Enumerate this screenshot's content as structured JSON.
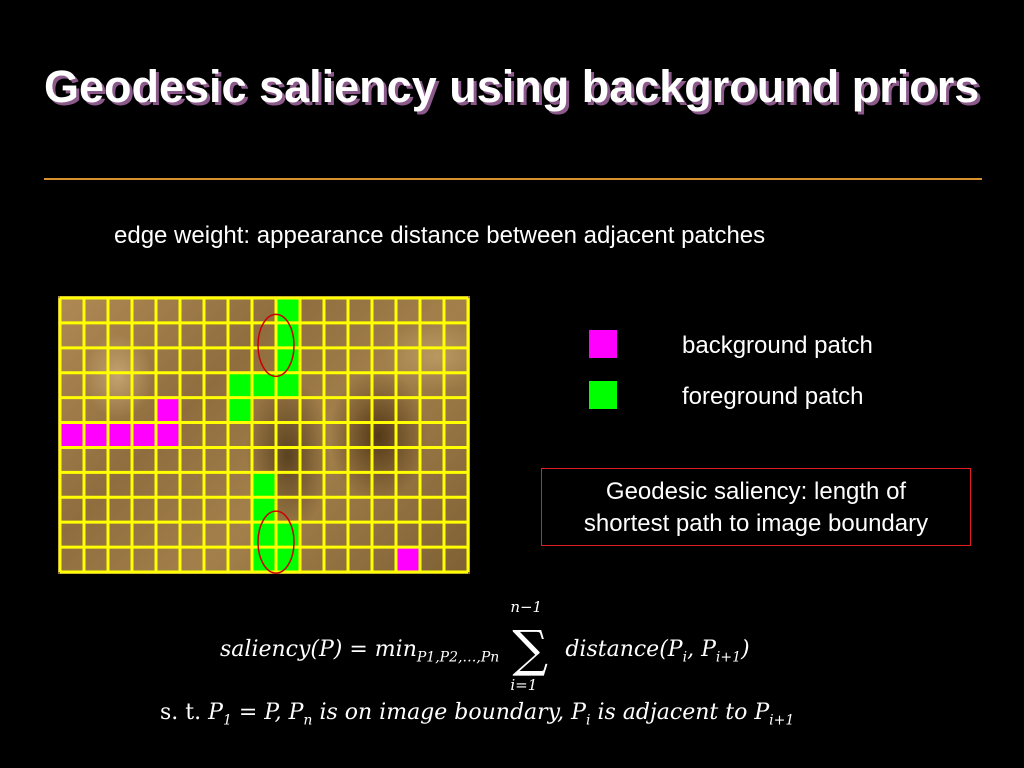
{
  "slide": {
    "title": "Geodesic saliency using background priors",
    "subtitle": "edge weight: appearance distance between adjacent patches"
  },
  "legend": {
    "background_label": "background patch",
    "foreground_label": "foreground patch",
    "background_color": "#ff00ff",
    "foreground_color": "#00ff00"
  },
  "definition": {
    "line1": "Geodesic saliency: length of",
    "line2": "shortest path to image boundary"
  },
  "patch_grid": {
    "rows": 11,
    "cols": 17,
    "grid_color": "#ffff00",
    "circle_color": "#cc0000",
    "background_cells": [
      [
        4,
        4
      ],
      [
        5,
        0
      ],
      [
        5,
        1
      ],
      [
        5,
        2
      ],
      [
        5,
        3
      ],
      [
        5,
        4
      ],
      [
        10,
        14
      ]
    ],
    "foreground_cells": [
      [
        0,
        9
      ],
      [
        1,
        9
      ],
      [
        2,
        9
      ],
      [
        3,
        7
      ],
      [
        3,
        8
      ],
      [
        3,
        9
      ],
      [
        4,
        7
      ],
      [
        7,
        8
      ],
      [
        8,
        8
      ],
      [
        9,
        8
      ],
      [
        9,
        9
      ],
      [
        10,
        8
      ],
      [
        10,
        9
      ]
    ]
  },
  "formula": {
    "lhs": "saliency(P) = min",
    "min_subscript": "P1,P2,…,Pn",
    "sum_upper": "n−1",
    "sum_lower": "i=1",
    "rhs_prefix": "distance(P",
    "rhs_sub_i": "i",
    "rhs_middle": ", P",
    "rhs_sub_i1": "i+1",
    "rhs_suffix": ")",
    "constraint_prefix": "s. t.",
    "constraint_p": "P",
    "constraint_sub1": "1",
    "constraint_eq": " = P, P",
    "constraint_subn": "n",
    "constraint_mid": " is on image boundary, P",
    "constraint_subi": "i",
    "constraint_adj": " is adjacent to P",
    "constraint_subi1": "i+1"
  }
}
